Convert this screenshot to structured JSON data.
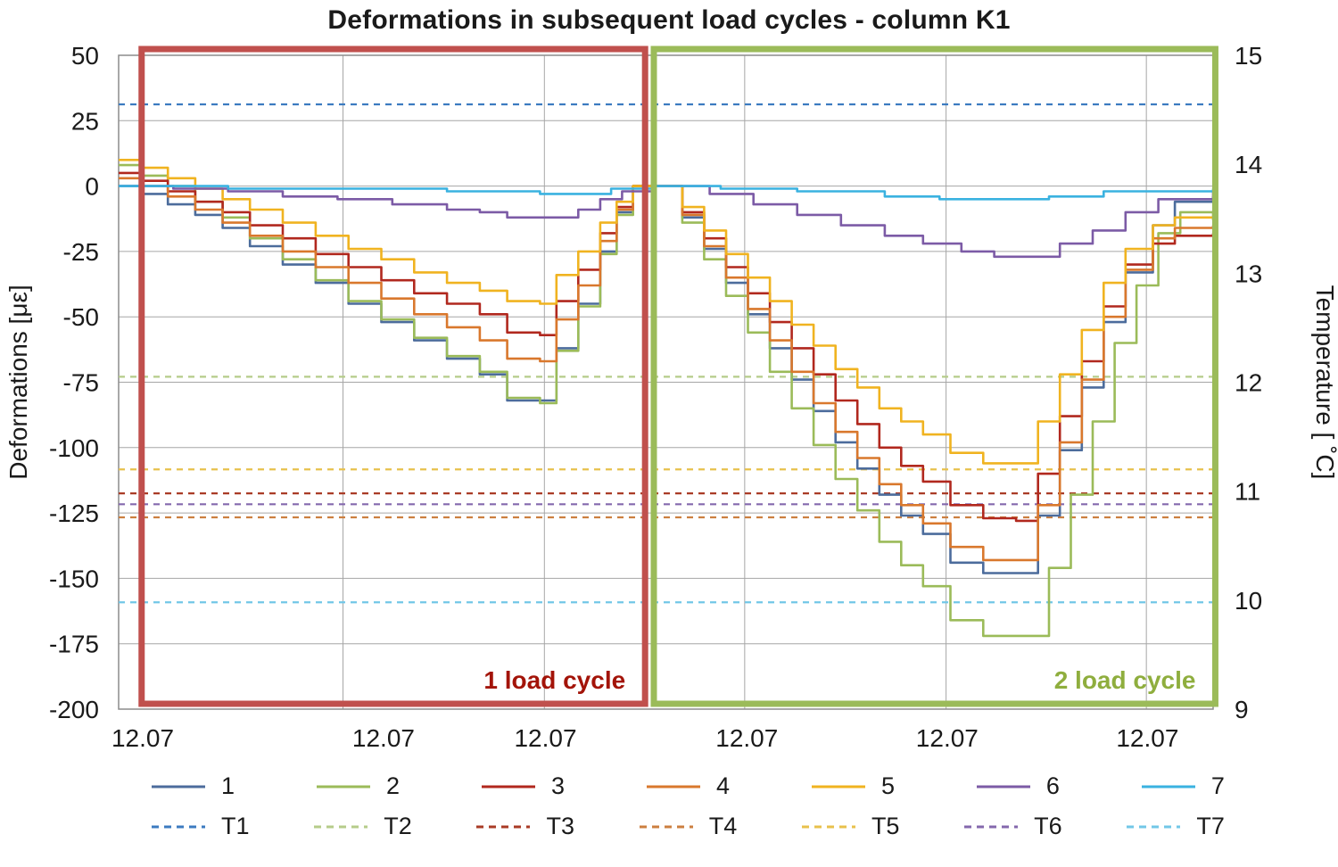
{
  "chart_data": {
    "type": "line",
    "title": "Deformations in subsequent load cycles - column K1",
    "ylabel_left": "Deformations [με]",
    "ylabel_right": "Temperature [˚0C]",
    "ylabel_right_text": "Temperature [ ˚C]",
    "y_left": {
      "min": -200,
      "max": 50,
      "step": 25
    },
    "y_right": {
      "min": 9,
      "max": 15,
      "step": 1
    },
    "grid_color": "#a6a6a6",
    "x_ticks": {
      "label": "12.07",
      "fractions": [
        0.022,
        0.242,
        0.39,
        0.574,
        0.757,
        0.94
      ]
    },
    "v_gridlines": [
      0.205,
      0.389,
      0.572,
      0.756,
      0.939
    ],
    "annotations": [
      {
        "id": "cycle1",
        "label": "1 load cycle",
        "text_color": "#a31409",
        "box_color": "#c0504d",
        "x0": 0.021,
        "x1": 0.481
      },
      {
        "id": "cycle2",
        "label": "2 load cycle",
        "text_color": "#8fae3e",
        "box_color": "#9bbb59",
        "x0": 0.489,
        "x1": 1.002
      }
    ],
    "series": [
      {
        "name": "1",
        "color": "#4c6c9c",
        "points": [
          [
            0,
            0
          ],
          [
            0.02,
            -3
          ],
          [
            0.045,
            -7
          ],
          [
            0.07,
            -11
          ],
          [
            0.095,
            -16
          ],
          [
            0.12,
            -23
          ],
          [
            0.15,
            -30
          ],
          [
            0.18,
            -37
          ],
          [
            0.21,
            -45
          ],
          [
            0.24,
            -52
          ],
          [
            0.27,
            -59
          ],
          [
            0.3,
            -66
          ],
          [
            0.33,
            -72
          ],
          [
            0.355,
            -82
          ],
          [
            0.385,
            -82
          ],
          [
            0.4,
            -62
          ],
          [
            0.42,
            -45
          ],
          [
            0.44,
            -25
          ],
          [
            0.455,
            -10
          ],
          [
            0.47,
            0
          ],
          [
            0.5,
            0
          ],
          [
            0.515,
            -12
          ],
          [
            0.535,
            -24
          ],
          [
            0.555,
            -37
          ],
          [
            0.575,
            -49
          ],
          [
            0.595,
            -62
          ],
          [
            0.615,
            -74
          ],
          [
            0.635,
            -86
          ],
          [
            0.655,
            -98
          ],
          [
            0.675,
            -108
          ],
          [
            0.695,
            -118
          ],
          [
            0.715,
            -126
          ],
          [
            0.735,
            -133
          ],
          [
            0.76,
            -144
          ],
          [
            0.79,
            -148
          ],
          [
            0.82,
            -148
          ],
          [
            0.84,
            -126
          ],
          [
            0.86,
            -101
          ],
          [
            0.88,
            -77
          ],
          [
            0.9,
            -52
          ],
          [
            0.92,
            -33
          ],
          [
            0.945,
            -15
          ],
          [
            0.965,
            -6
          ],
          [
            1,
            -4
          ]
        ]
      },
      {
        "name": "2",
        "color": "#9bbb59",
        "points": [
          [
            0,
            8
          ],
          [
            0.02,
            4
          ],
          [
            0.045,
            0
          ],
          [
            0.07,
            -6
          ],
          [
            0.095,
            -12
          ],
          [
            0.12,
            -20
          ],
          [
            0.15,
            -28
          ],
          [
            0.18,
            -36
          ],
          [
            0.21,
            -44
          ],
          [
            0.24,
            -51
          ],
          [
            0.27,
            -58
          ],
          [
            0.3,
            -65
          ],
          [
            0.33,
            -71
          ],
          [
            0.355,
            -81
          ],
          [
            0.385,
            -83
          ],
          [
            0.4,
            -63
          ],
          [
            0.42,
            -46
          ],
          [
            0.44,
            -26
          ],
          [
            0.455,
            -11
          ],
          [
            0.47,
            0
          ],
          [
            0.5,
            0
          ],
          [
            0.515,
            -14
          ],
          [
            0.535,
            -28
          ],
          [
            0.555,
            -42
          ],
          [
            0.575,
            -56
          ],
          [
            0.595,
            -71
          ],
          [
            0.615,
            -85
          ],
          [
            0.635,
            -99
          ],
          [
            0.655,
            -112
          ],
          [
            0.675,
            -124
          ],
          [
            0.695,
            -136
          ],
          [
            0.715,
            -145
          ],
          [
            0.735,
            -153
          ],
          [
            0.76,
            -166
          ],
          [
            0.79,
            -172
          ],
          [
            0.825,
            -172
          ],
          [
            0.85,
            -146
          ],
          [
            0.87,
            -118
          ],
          [
            0.89,
            -90
          ],
          [
            0.91,
            -60
          ],
          [
            0.93,
            -38
          ],
          [
            0.95,
            -18
          ],
          [
            0.97,
            -10
          ],
          [
            1,
            -13
          ]
        ]
      },
      {
        "name": "3",
        "color": "#b1281e",
        "points": [
          [
            0,
            5
          ],
          [
            0.02,
            2
          ],
          [
            0.045,
            -2
          ],
          [
            0.07,
            -6
          ],
          [
            0.095,
            -10
          ],
          [
            0.12,
            -15
          ],
          [
            0.15,
            -20
          ],
          [
            0.18,
            -26
          ],
          [
            0.21,
            -31
          ],
          [
            0.24,
            -36
          ],
          [
            0.27,
            -41
          ],
          [
            0.3,
            -45
          ],
          [
            0.33,
            -49
          ],
          [
            0.355,
            -56
          ],
          [
            0.385,
            -57
          ],
          [
            0.4,
            -44
          ],
          [
            0.42,
            -32
          ],
          [
            0.44,
            -18
          ],
          [
            0.455,
            -8
          ],
          [
            0.47,
            0
          ],
          [
            0.5,
            0
          ],
          [
            0.515,
            -10
          ],
          [
            0.535,
            -20
          ],
          [
            0.555,
            -31
          ],
          [
            0.575,
            -41
          ],
          [
            0.595,
            -52
          ],
          [
            0.615,
            -62
          ],
          [
            0.635,
            -72
          ],
          [
            0.655,
            -82
          ],
          [
            0.675,
            -91
          ],
          [
            0.695,
            -100
          ],
          [
            0.715,
            -107
          ],
          [
            0.735,
            -113
          ],
          [
            0.76,
            -122
          ],
          [
            0.79,
            -127
          ],
          [
            0.82,
            -128
          ],
          [
            0.84,
            -110
          ],
          [
            0.86,
            -88
          ],
          [
            0.88,
            -67
          ],
          [
            0.9,
            -46
          ],
          [
            0.92,
            -30
          ],
          [
            0.945,
            -22
          ],
          [
            0.965,
            -19
          ],
          [
            1,
            -18
          ]
        ]
      },
      {
        "name": "4",
        "color": "#d9782d",
        "points": [
          [
            0,
            3
          ],
          [
            0.02,
            0
          ],
          [
            0.045,
            -4
          ],
          [
            0.07,
            -9
          ],
          [
            0.095,
            -14
          ],
          [
            0.12,
            -19
          ],
          [
            0.15,
            -25
          ],
          [
            0.18,
            -31
          ],
          [
            0.21,
            -37
          ],
          [
            0.24,
            -43
          ],
          [
            0.27,
            -49
          ],
          [
            0.3,
            -54
          ],
          [
            0.33,
            -59
          ],
          [
            0.355,
            -66
          ],
          [
            0.385,
            -67
          ],
          [
            0.4,
            -51
          ],
          [
            0.42,
            -38
          ],
          [
            0.44,
            -21
          ],
          [
            0.455,
            -9
          ],
          [
            0.47,
            0
          ],
          [
            0.5,
            0
          ],
          [
            0.515,
            -11
          ],
          [
            0.535,
            -23
          ],
          [
            0.555,
            -35
          ],
          [
            0.575,
            -47
          ],
          [
            0.595,
            -59
          ],
          [
            0.615,
            -71
          ],
          [
            0.635,
            -83
          ],
          [
            0.655,
            -94
          ],
          [
            0.675,
            -104
          ],
          [
            0.695,
            -114
          ],
          [
            0.715,
            -122
          ],
          [
            0.735,
            -129
          ],
          [
            0.76,
            -138
          ],
          [
            0.79,
            -143
          ],
          [
            0.82,
            -143
          ],
          [
            0.84,
            -122
          ],
          [
            0.86,
            -98
          ],
          [
            0.88,
            -74
          ],
          [
            0.9,
            -50
          ],
          [
            0.92,
            -32
          ],
          [
            0.945,
            -20
          ],
          [
            0.965,
            -16
          ],
          [
            1,
            -15
          ]
        ]
      },
      {
        "name": "5",
        "color": "#f0b320",
        "points": [
          [
            0,
            10
          ],
          [
            0.02,
            7
          ],
          [
            0.045,
            3
          ],
          [
            0.07,
            -1
          ],
          [
            0.095,
            -5
          ],
          [
            0.12,
            -9
          ],
          [
            0.15,
            -14
          ],
          [
            0.18,
            -19
          ],
          [
            0.21,
            -24
          ],
          [
            0.24,
            -28
          ],
          [
            0.27,
            -33
          ],
          [
            0.3,
            -37
          ],
          [
            0.33,
            -40
          ],
          [
            0.355,
            -44
          ],
          [
            0.385,
            -45
          ],
          [
            0.4,
            -34
          ],
          [
            0.42,
            -25
          ],
          [
            0.44,
            -14
          ],
          [
            0.455,
            -6
          ],
          [
            0.47,
            0
          ],
          [
            0.5,
            0
          ],
          [
            0.515,
            -8
          ],
          [
            0.535,
            -17
          ],
          [
            0.555,
            -26
          ],
          [
            0.575,
            -35
          ],
          [
            0.595,
            -44
          ],
          [
            0.615,
            -53
          ],
          [
            0.635,
            -61
          ],
          [
            0.655,
            -70
          ],
          [
            0.675,
            -77
          ],
          [
            0.695,
            -85
          ],
          [
            0.715,
            -90
          ],
          [
            0.735,
            -95
          ],
          [
            0.76,
            -102
          ],
          [
            0.79,
            -106
          ],
          [
            0.82,
            -106
          ],
          [
            0.84,
            -90
          ],
          [
            0.86,
            -72
          ],
          [
            0.88,
            -55
          ],
          [
            0.9,
            -37
          ],
          [
            0.92,
            -24
          ],
          [
            0.945,
            -15
          ],
          [
            0.965,
            -12
          ],
          [
            1,
            -12
          ]
        ]
      },
      {
        "name": "6",
        "color": "#7c5ba6",
        "points": [
          [
            0,
            0
          ],
          [
            0.05,
            -1
          ],
          [
            0.1,
            -2
          ],
          [
            0.15,
            -4
          ],
          [
            0.2,
            -5
          ],
          [
            0.25,
            -7
          ],
          [
            0.3,
            -9
          ],
          [
            0.33,
            -10
          ],
          [
            0.355,
            -12
          ],
          [
            0.385,
            -12
          ],
          [
            0.42,
            -9
          ],
          [
            0.44,
            -5
          ],
          [
            0.46,
            -2
          ],
          [
            0.49,
            0
          ],
          [
            0.5,
            0
          ],
          [
            0.54,
            -3
          ],
          [
            0.58,
            -7
          ],
          [
            0.62,
            -11
          ],
          [
            0.66,
            -15
          ],
          [
            0.7,
            -19
          ],
          [
            0.735,
            -22
          ],
          [
            0.77,
            -25
          ],
          [
            0.8,
            -27
          ],
          [
            0.83,
            -27
          ],
          [
            0.86,
            -22
          ],
          [
            0.89,
            -17
          ],
          [
            0.92,
            -10
          ],
          [
            0.95,
            -5
          ],
          [
            1,
            -2
          ]
        ]
      },
      {
        "name": "7",
        "color": "#3ab2e0",
        "points": [
          [
            0,
            0
          ],
          [
            0.1,
            -1
          ],
          [
            0.2,
            -1
          ],
          [
            0.3,
            -2
          ],
          [
            0.385,
            -3
          ],
          [
            0.45,
            -1
          ],
          [
            0.49,
            0
          ],
          [
            0.55,
            -1
          ],
          [
            0.62,
            -2
          ],
          [
            0.7,
            -4
          ],
          [
            0.75,
            -5
          ],
          [
            0.8,
            -5
          ],
          [
            0.85,
            -4
          ],
          [
            0.9,
            -2
          ],
          [
            1,
            -1
          ]
        ]
      }
    ],
    "temp_series": [
      {
        "name": "T1",
        "color": "#3c7bc0",
        "value": 14.55
      },
      {
        "name": "T2",
        "color": "#b6cc8a",
        "value": 12.05
      },
      {
        "name": "T3",
        "color": "#a93b26",
        "value": 10.98
      },
      {
        "name": "T4",
        "color": "#cc7f40",
        "value": 10.76
      },
      {
        "name": "T5",
        "color": "#e8c14c",
        "value": 11.2
      },
      {
        "name": "T6",
        "color": "#8468ad",
        "value": 10.88
      },
      {
        "name": "T7",
        "color": "#72c7e7",
        "value": 9.98
      }
    ]
  }
}
